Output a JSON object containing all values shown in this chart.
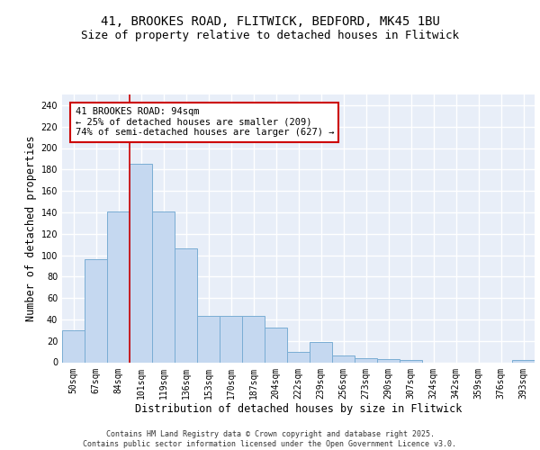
{
  "title_line1": "41, BROOKES ROAD, FLITWICK, BEDFORD, MK45 1BU",
  "title_line2": "Size of property relative to detached houses in Flitwick",
  "xlabel": "Distribution of detached houses by size in Flitwick",
  "ylabel": "Number of detached properties",
  "categories": [
    "50sqm",
    "67sqm",
    "84sqm",
    "101sqm",
    "119sqm",
    "136sqm",
    "153sqm",
    "170sqm",
    "187sqm",
    "204sqm",
    "222sqm",
    "239sqm",
    "256sqm",
    "273sqm",
    "290sqm",
    "307sqm",
    "324sqm",
    "342sqm",
    "359sqm",
    "376sqm",
    "393sqm"
  ],
  "values": [
    30,
    96,
    141,
    185,
    141,
    106,
    43,
    43,
    43,
    32,
    10,
    19,
    6,
    4,
    3,
    2,
    0,
    0,
    0,
    0,
    2
  ],
  "bar_color": "#c5d8f0",
  "bar_edge_color": "#7aadd4",
  "background_color": "#e8eef8",
  "grid_color": "#ffffff",
  "red_line_x": 2.5,
  "annotation_text": "41 BROOKES ROAD: 94sqm\n← 25% of detached houses are smaller (209)\n74% of semi-detached houses are larger (627) →",
  "annotation_box_color": "#ffffff",
  "annotation_box_edge": "#cc0000",
  "ylim": [
    0,
    250
  ],
  "yticks": [
    0,
    20,
    40,
    60,
    80,
    100,
    120,
    140,
    160,
    180,
    200,
    220,
    240
  ],
  "footer_text": "Contains HM Land Registry data © Crown copyright and database right 2025.\nContains public sector information licensed under the Open Government Licence v3.0.",
  "title_fontsize": 10,
  "subtitle_fontsize": 9,
  "axis_label_fontsize": 8.5,
  "tick_fontsize": 7,
  "annotation_fontsize": 7.5,
  "footer_fontsize": 6
}
